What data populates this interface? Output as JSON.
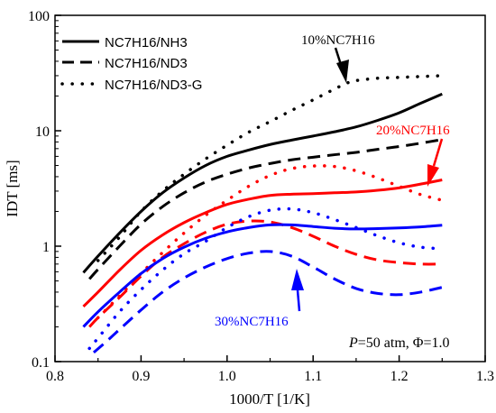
{
  "chart_data": {
    "type": "line",
    "xlabel": "1000/T [1/K]",
    "ylabel": "IDT [ms]",
    "xlim": [
      0.8,
      1.3
    ],
    "ylim": [
      0.1,
      100
    ],
    "yscale": "log",
    "xticks": [
      "0.8",
      "0.9",
      "1.0",
      "1.1",
      "1.2",
      "1.3"
    ],
    "yticks": [
      "0.1",
      "1",
      "10",
      "100"
    ],
    "grid": false,
    "legend": {
      "placement": "top-left",
      "entries": [
        {
          "label": "NC7H16/NH3",
          "style": "solid"
        },
        {
          "label": "NC7H16/ND3",
          "style": "dashed"
        },
        {
          "label": "NC7H16/ND3-G",
          "style": "dotted"
        }
      ]
    },
    "conditions": {
      "p_symbol": "P",
      "p_value": "=50 atm, Φ=1.0"
    },
    "colors": {
      "10%NC7H16": "#000000",
      "20%NC7H16": "#ff0000",
      "30%NC7H16": "#0000ff"
    },
    "annotations": [
      {
        "text": "10%NC7H16",
        "color": "#000000"
      },
      {
        "text": "20%NC7H16",
        "color": "#ff0000"
      },
      {
        "text": "30%NC7H16",
        "color": "#0000ff"
      }
    ],
    "series": [
      {
        "group": "10%NC7H16",
        "style": "solid",
        "x": [
          0.833,
          0.85,
          0.875,
          0.9,
          0.925,
          0.95,
          0.975,
          1.0,
          1.025,
          1.05,
          1.075,
          1.1,
          1.125,
          1.15,
          1.175,
          1.2,
          1.225,
          1.25
        ],
        "y": [
          0.59,
          0.82,
          1.3,
          2.0,
          2.9,
          3.9,
          5.0,
          6.0,
          6.8,
          7.6,
          8.3,
          9.0,
          9.8,
          10.8,
          12.3,
          14.3,
          17.3,
          20.8
        ]
      },
      {
        "group": "10%NC7H16",
        "style": "dashed",
        "x": [
          0.84,
          0.85,
          0.875,
          0.9,
          0.925,
          0.95,
          0.975,
          1.0,
          1.025,
          1.05,
          1.075,
          1.1,
          1.125,
          1.15,
          1.175,
          1.2,
          1.225,
          1.25
        ],
        "y": [
          0.52,
          0.63,
          1.0,
          1.55,
          2.2,
          2.9,
          3.6,
          4.2,
          4.75,
          5.2,
          5.6,
          5.9,
          6.2,
          6.5,
          6.9,
          7.3,
          7.8,
          8.4
        ]
      },
      {
        "group": "10%NC7H16",
        "style": "dotted",
        "x": [
          0.85,
          0.875,
          0.9,
          0.925,
          0.95,
          0.975,
          1.0,
          1.025,
          1.05,
          1.075,
          1.1,
          1.125,
          1.14,
          1.15,
          1.175,
          1.2,
          1.225,
          1.25
        ],
        "y": [
          0.75,
          1.2,
          2.0,
          3.0,
          4.2,
          5.7,
          7.5,
          9.7,
          12.0,
          15.0,
          18.5,
          23.0,
          26.0,
          27.2,
          28.5,
          29.0,
          29.5,
          30.0
        ]
      },
      {
        "group": "20%NC7H16",
        "style": "solid",
        "x": [
          0.833,
          0.85,
          0.875,
          0.9,
          0.925,
          0.95,
          0.975,
          1.0,
          1.025,
          1.05,
          1.075,
          1.1,
          1.125,
          1.15,
          1.175,
          1.2,
          1.225,
          1.25
        ],
        "y": [
          0.3,
          0.4,
          0.62,
          0.92,
          1.25,
          1.6,
          1.95,
          2.3,
          2.55,
          2.75,
          2.82,
          2.85,
          2.9,
          2.95,
          3.05,
          3.2,
          3.45,
          3.75
        ]
      },
      {
        "group": "20%NC7H16",
        "style": "dashed",
        "x": [
          0.84,
          0.85,
          0.875,
          0.9,
          0.925,
          0.95,
          0.975,
          1.0,
          1.025,
          1.05,
          1.075,
          1.1,
          1.125,
          1.15,
          1.175,
          1.2,
          1.225,
          1.25
        ],
        "y": [
          0.2,
          0.24,
          0.36,
          0.55,
          0.8,
          1.05,
          1.32,
          1.55,
          1.65,
          1.62,
          1.45,
          1.22,
          1.0,
          0.85,
          0.76,
          0.72,
          0.7,
          0.7
        ]
      },
      {
        "group": "20%NC7H16",
        "style": "dotted",
        "x": [
          0.85,
          0.875,
          0.9,
          0.925,
          0.95,
          0.975,
          1.0,
          1.025,
          1.05,
          1.075,
          1.1,
          1.125,
          1.15,
          1.175,
          1.2,
          1.225,
          1.25
        ],
        "y": [
          0.24,
          0.37,
          0.58,
          0.88,
          1.3,
          1.85,
          2.5,
          3.3,
          4.1,
          4.7,
          4.95,
          4.9,
          4.5,
          3.9,
          3.3,
          2.8,
          2.5
        ]
      },
      {
        "group": "30%NC7H16",
        "style": "solid",
        "x": [
          0.833,
          0.85,
          0.875,
          0.9,
          0.925,
          0.95,
          0.975,
          1.0,
          1.025,
          1.05,
          1.075,
          1.1,
          1.125,
          1.15,
          1.175,
          1.2,
          1.225,
          1.25
        ],
        "y": [
          0.2,
          0.27,
          0.4,
          0.58,
          0.78,
          0.98,
          1.17,
          1.33,
          1.45,
          1.53,
          1.53,
          1.48,
          1.43,
          1.41,
          1.42,
          1.44,
          1.47,
          1.52
        ]
      },
      {
        "group": "30%NC7H16",
        "style": "dashed",
        "x": [
          0.845,
          0.86,
          0.875,
          0.9,
          0.925,
          0.95,
          0.975,
          1.0,
          1.025,
          1.05,
          1.075,
          1.1,
          1.125,
          1.15,
          1.175,
          1.2,
          1.225,
          1.25
        ],
        "y": [
          0.12,
          0.15,
          0.19,
          0.28,
          0.4,
          0.53,
          0.66,
          0.78,
          0.87,
          0.9,
          0.82,
          0.66,
          0.52,
          0.43,
          0.39,
          0.38,
          0.4,
          0.44
        ]
      },
      {
        "group": "30%NC7H16",
        "style": "dotted",
        "x": [
          0.84,
          0.85,
          0.875,
          0.9,
          0.925,
          0.95,
          0.975,
          1.0,
          1.025,
          1.05,
          1.075,
          1.1,
          1.125,
          1.15,
          1.175,
          1.2,
          1.225,
          1.25
        ],
        "y": [
          0.13,
          0.16,
          0.27,
          0.42,
          0.62,
          0.86,
          1.1,
          1.45,
          1.8,
          2.05,
          2.1,
          1.95,
          1.7,
          1.45,
          1.23,
          1.07,
          0.98,
          0.95
        ]
      }
    ]
  }
}
